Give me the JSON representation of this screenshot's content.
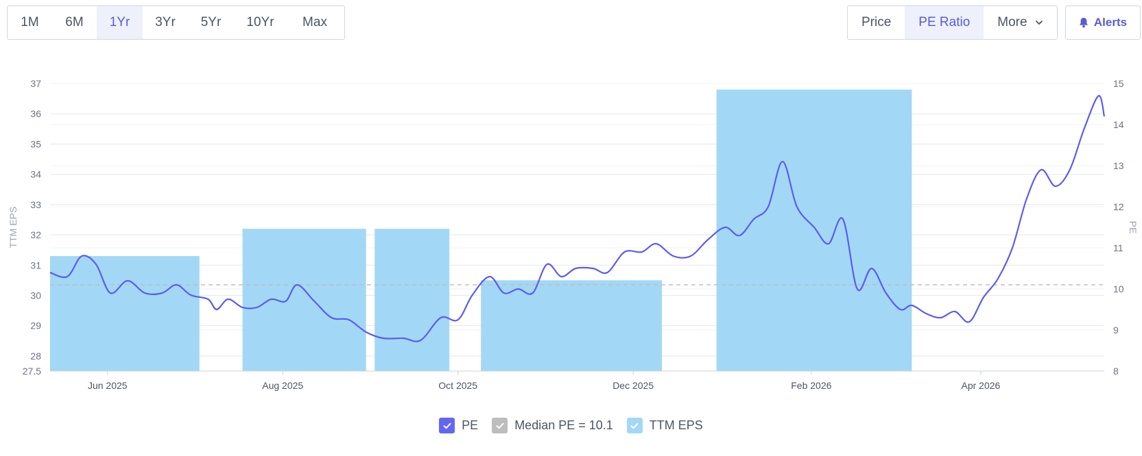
{
  "range_buttons": [
    {
      "label": "1M",
      "active": false
    },
    {
      "label": "6M",
      "active": false
    },
    {
      "label": "1Yr",
      "active": true
    },
    {
      "label": "3Yr",
      "active": false
    },
    {
      "label": "5Yr",
      "active": false
    },
    {
      "label": "10Yr",
      "active": false
    },
    {
      "label": "Max",
      "active": false
    }
  ],
  "view_buttons": {
    "price_label": "Price",
    "pe_ratio_label": "PE Ratio",
    "more_label": "More",
    "active": "PE Ratio"
  },
  "alerts_label": "Alerts",
  "colors": {
    "accent": "#5b5bd6",
    "pe_line": "#5b5bf0",
    "eps_bar": "#a2d8f5",
    "median_line": "#bdbdbd",
    "active_bg": "#eef0fc"
  },
  "chart_data": {
    "type": "bar+line",
    "x_ticks": [
      "Jun 2025",
      "Aug 2025",
      "Oct 2025",
      "Dec 2025",
      "Feb 2026",
      "Apr 2026"
    ],
    "left_axis": {
      "label": "TTM EPS",
      "ticks": [
        "27.5",
        "28",
        "29",
        "30",
        "31",
        "32",
        "33",
        "34",
        "35",
        "36",
        "37"
      ],
      "range": [
        27.5,
        37
      ]
    },
    "right_axis": {
      "label": "PE",
      "ticks": [
        "8",
        "9",
        "10",
        "11",
        "12",
        "13",
        "14",
        "15"
      ],
      "range": [
        8,
        15
      ]
    },
    "median_pe": 10.1,
    "series": [
      {
        "name": "TTM EPS",
        "type": "bar",
        "axis": "left",
        "bars": [
          {
            "start": "2025-05-12",
            "end": "2025-07-03",
            "value": 31.3
          },
          {
            "start": "2025-07-18",
            "end": "2025-08-30",
            "value": 32.2
          },
          {
            "start": "2025-09-02",
            "end": "2025-09-28",
            "value": 32.2
          },
          {
            "start": "2025-10-09",
            "end": "2025-12-11",
            "value": 30.5
          },
          {
            "start": "2025-12-30",
            "end": "2026-03-08",
            "value": 36.8
          }
        ]
      },
      {
        "name": "PE",
        "type": "line",
        "axis": "right",
        "points": [
          [
            "2025-05-12",
            10.4
          ],
          [
            "2025-05-18",
            10.3
          ],
          [
            "2025-05-23",
            10.8
          ],
          [
            "2025-05-28",
            10.6
          ],
          [
            "2025-06-02",
            9.9
          ],
          [
            "2025-06-08",
            10.2
          ],
          [
            "2025-06-14",
            9.9
          ],
          [
            "2025-06-20",
            9.9
          ],
          [
            "2025-06-25",
            10.1
          ],
          [
            "2025-06-30",
            9.85
          ],
          [
            "2025-07-06",
            9.75
          ],
          [
            "2025-07-09",
            9.5
          ],
          [
            "2025-07-13",
            9.75
          ],
          [
            "2025-07-18",
            9.55
          ],
          [
            "2025-07-23",
            9.55
          ],
          [
            "2025-07-28",
            9.75
          ],
          [
            "2025-08-02",
            9.7
          ],
          [
            "2025-08-06",
            10.1
          ],
          [
            "2025-08-12",
            9.7
          ],
          [
            "2025-08-18",
            9.3
          ],
          [
            "2025-08-24",
            9.25
          ],
          [
            "2025-08-30",
            8.95
          ],
          [
            "2025-09-05",
            8.8
          ],
          [
            "2025-09-12",
            8.8
          ],
          [
            "2025-09-18",
            8.75
          ],
          [
            "2025-09-25",
            9.3
          ],
          [
            "2025-10-01",
            9.25
          ],
          [
            "2025-10-06",
            9.85
          ],
          [
            "2025-10-12",
            10.3
          ],
          [
            "2025-10-17",
            9.9
          ],
          [
            "2025-10-22",
            10.0
          ],
          [
            "2025-10-27",
            9.9
          ],
          [
            "2025-11-01",
            10.6
          ],
          [
            "2025-11-06",
            10.3
          ],
          [
            "2025-11-11",
            10.5
          ],
          [
            "2025-11-17",
            10.5
          ],
          [
            "2025-11-22",
            10.4
          ],
          [
            "2025-11-28",
            10.9
          ],
          [
            "2025-12-04",
            10.9
          ],
          [
            "2025-12-09",
            11.1
          ],
          [
            "2025-12-15",
            10.8
          ],
          [
            "2025-12-21",
            10.8
          ],
          [
            "2025-12-27",
            11.2
          ],
          [
            "2026-01-02",
            11.5
          ],
          [
            "2026-01-07",
            11.3
          ],
          [
            "2026-01-12",
            11.7
          ],
          [
            "2026-01-17",
            12.0
          ],
          [
            "2026-01-22",
            13.1
          ],
          [
            "2026-01-27",
            12.0
          ],
          [
            "2026-02-02",
            11.5
          ],
          [
            "2026-02-07",
            11.1
          ],
          [
            "2026-02-12",
            11.7
          ],
          [
            "2026-02-17",
            10.0
          ],
          [
            "2026-02-22",
            10.5
          ],
          [
            "2026-02-27",
            9.9
          ],
          [
            "2026-03-04",
            9.5
          ],
          [
            "2026-03-08",
            9.6
          ],
          [
            "2026-03-13",
            9.4
          ],
          [
            "2026-03-18",
            9.3
          ],
          [
            "2026-03-23",
            9.45
          ],
          [
            "2026-03-28",
            9.2
          ],
          [
            "2026-04-02",
            9.8
          ],
          [
            "2026-04-07",
            10.25
          ],
          [
            "2026-04-12",
            11.0
          ],
          [
            "2026-04-17",
            12.2
          ],
          [
            "2026-04-22",
            12.9
          ],
          [
            "2026-04-27",
            12.5
          ],
          [
            "2026-05-02",
            12.9
          ],
          [
            "2026-05-07",
            13.9
          ],
          [
            "2026-05-12",
            14.7
          ],
          [
            "2026-05-14",
            14.2
          ]
        ]
      }
    ],
    "legend": [
      {
        "name": "PE",
        "color": "#6366f1",
        "checked": true
      },
      {
        "name": "Median PE = 10.1",
        "color": "#bdbdbd",
        "checked": true
      },
      {
        "name": "TTM EPS",
        "color": "#a2d8f5",
        "checked": true
      }
    ],
    "legend_position": "bottom",
    "grid": true
  }
}
